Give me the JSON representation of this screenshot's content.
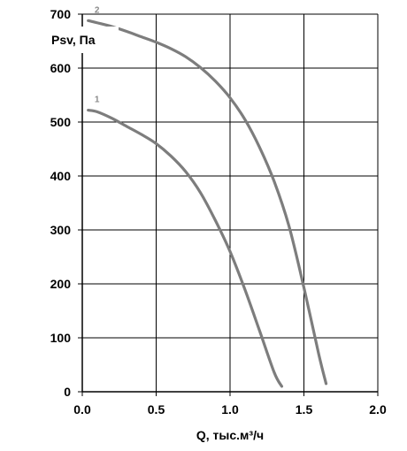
{
  "chart_data": {
    "type": "line",
    "xlabel": "Q, тыс.м³/ч",
    "ylabel": "Psv, Па",
    "xlim": [
      0,
      2.0
    ],
    "ylim": [
      0,
      700
    ],
    "xticks": [
      "0.0",
      "0.5",
      "1.0",
      "1.5",
      "2.0"
    ],
    "yticks": [
      "0",
      "100",
      "200",
      "300",
      "400",
      "500",
      "600",
      "700"
    ],
    "grid": true,
    "line_color": "#7d7d7d",
    "series": [
      {
        "name": "1",
        "x": [
          0.04,
          0.1,
          0.2,
          0.3,
          0.4,
          0.5,
          0.6,
          0.7,
          0.8,
          0.9,
          1.0,
          1.1,
          1.2,
          1.3,
          1.35
        ],
        "y": [
          522,
          519,
          507,
          492,
          477,
          460,
          437,
          408,
          369,
          318,
          260,
          190,
          113,
          35,
          10
        ]
      },
      {
        "name": "2",
        "x": [
          0.04,
          0.1,
          0.2,
          0.3,
          0.4,
          0.5,
          0.6,
          0.7,
          0.8,
          0.9,
          1.0,
          1.1,
          1.2,
          1.3,
          1.4,
          1.5,
          1.6,
          1.65
        ],
        "y": [
          688,
          684,
          677,
          668,
          658,
          648,
          636,
          621,
          601,
          576,
          545,
          505,
          453,
          389,
          306,
          193,
          70,
          15
        ]
      }
    ]
  }
}
